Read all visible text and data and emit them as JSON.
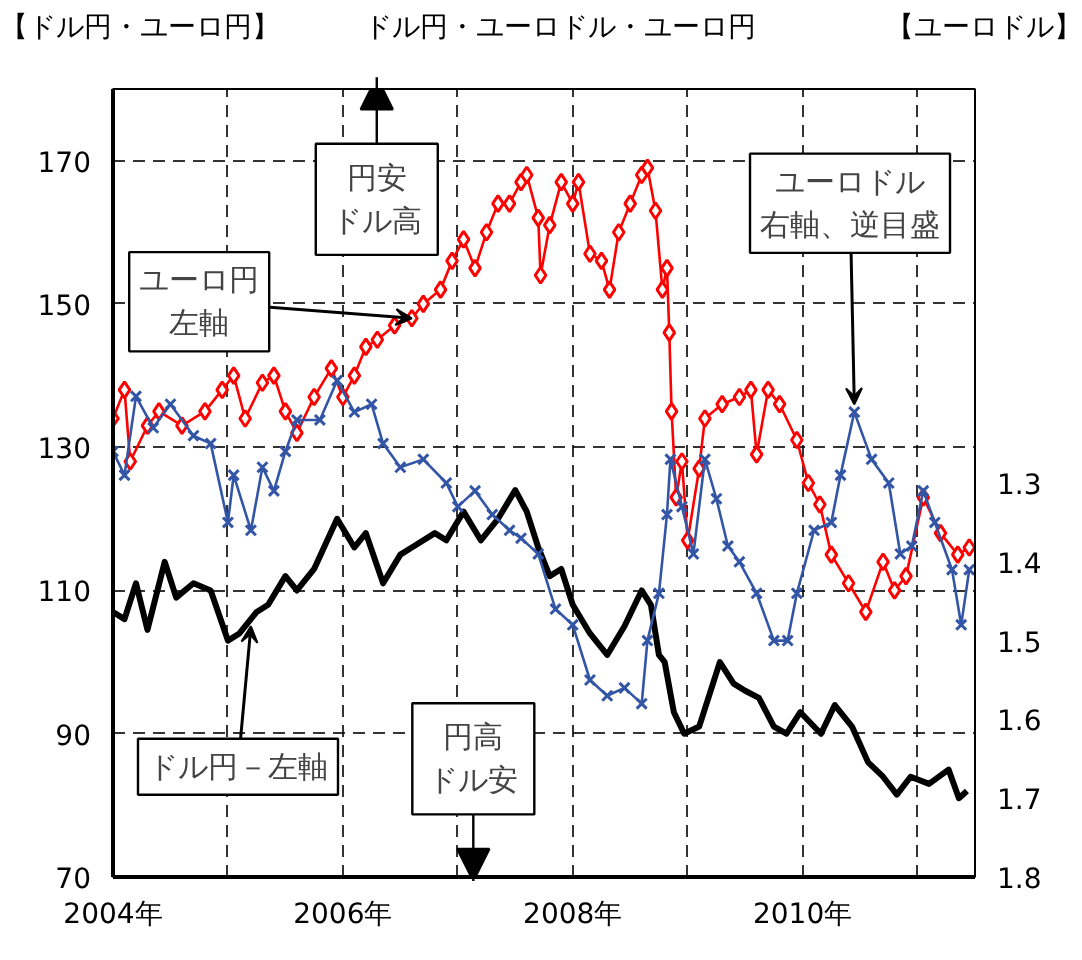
{
  "chart_data": {
    "type": "line",
    "title": "ドル円・ユーロドル・ユーロ円",
    "ylabel": "【ドル円・ユーロ円】",
    "y2label": "【ユーロドル】",
    "xlim": [
      2004,
      2011.5
    ],
    "xticks": [
      {
        "value": 2004,
        "label": "2004年"
      },
      {
        "value": 2005,
        "label": null
      },
      {
        "value": 2006,
        "label": "2006年"
      },
      {
        "value": 2007,
        "label": null
      },
      {
        "value": 2008,
        "label": "2008年"
      },
      {
        "value": 2009,
        "label": null
      },
      {
        "value": 2010,
        "label": "2010年"
      },
      {
        "value": 2011,
        "label": null
      }
    ],
    "ylim": [
      70,
      180
    ],
    "yticks": [
      70,
      90,
      110,
      130,
      150,
      170
    ],
    "y2lim": [
      1.8,
      0.8
    ],
    "y2ticks": [
      1.3,
      1.4,
      1.5,
      1.6,
      1.7,
      1.8
    ],
    "grid": true,
    "series": [
      {
        "color": "#000000",
        "marker": "none",
        "x": [
          2004.0,
          2004.1,
          2004.2,
          2004.3,
          2004.45,
          2004.55,
          2004.7,
          2004.85,
          2005.0,
          2005.1,
          2005.25,
          2005.35,
          2005.5,
          2005.6,
          2005.75,
          2005.95,
          2006.1,
          2006.2,
          2006.35,
          2006.5,
          2006.6,
          2006.8,
          2006.9,
          2007.05,
          2007.2,
          2007.35,
          2007.5,
          2007.6,
          2007.7,
          2007.8,
          2007.9,
          2008.0,
          2008.15,
          2008.3,
          2008.45,
          2008.6,
          2008.68,
          2008.75,
          2008.8,
          2008.88,
          2008.97,
          2009.1,
          2009.28,
          2009.4,
          2009.5,
          2009.62,
          2009.75,
          2009.86,
          2009.98,
          2010.16,
          2010.28,
          2010.43,
          2010.57,
          2010.7,
          2010.82,
          2010.94,
          2011.1,
          2011.27,
          2011.36,
          2011.43
        ],
        "values": [
          107,
          106,
          111,
          104.5,
          114,
          109,
          111,
          110,
          103,
          104,
          107,
          108,
          112,
          110,
          113,
          120,
          116,
          118,
          111,
          115,
          116,
          118,
          117,
          121,
          117,
          120,
          124,
          121,
          116,
          112,
          113,
          108,
          104,
          101,
          105,
          110,
          108,
          101,
          100,
          93,
          90,
          91,
          100,
          97,
          96,
          95,
          91,
          90,
          93,
          90,
          94,
          91,
          86,
          84,
          81.5,
          84,
          83,
          85,
          81,
          82
        ]
      },
      {
        "color": "#ff0000",
        "marker": "diamond",
        "x": [
          2004.0,
          2004.1,
          2004.15,
          2004.3,
          2004.4,
          2004.6,
          2004.8,
          2004.95,
          2005.05,
          2005.15,
          2005.3,
          2005.4,
          2005.5,
          2005.6,
          2005.75,
          2005.9,
          2006.0,
          2006.1,
          2006.2,
          2006.3,
          2006.45,
          2006.6,
          2006.7,
          2006.85,
          2006.95,
          2007.05,
          2007.15,
          2007.25,
          2007.35,
          2007.45,
          2007.55,
          2007.6,
          2007.7,
          2007.72,
          2007.8,
          2007.9,
          2008.0,
          2008.05,
          2008.15,
          2008.25,
          2008.32,
          2008.4,
          2008.5,
          2008.6,
          2008.65,
          2008.72,
          2008.78,
          2008.82,
          2008.84,
          2008.86,
          2008.9,
          2008.95,
          2009.0,
          2009.1,
          2009.15,
          2009.3,
          2009.45,
          2009.55,
          2009.6,
          2009.7,
          2009.8,
          2009.95,
          2010.05,
          2010.15,
          2010.25,
          2010.4,
          2010.55,
          2010.7,
          2010.8,
          2010.9,
          2011.05,
          2011.2,
          2011.35,
          2011.45
        ],
        "values": [
          134,
          138,
          128,
          133,
          135,
          133,
          135,
          138,
          140,
          134,
          139,
          140,
          135,
          132,
          137,
          141,
          137,
          140,
          144,
          145,
          147,
          148,
          150,
          152,
          156,
          159,
          155,
          160,
          164,
          164,
          167,
          168,
          162,
          154,
          161,
          167,
          164,
          167,
          157,
          156,
          152,
          160,
          164,
          168,
          169,
          163,
          152,
          155,
          146,
          135,
          123,
          128,
          117,
          127,
          134,
          136,
          137,
          138,
          129,
          138,
          136,
          131,
          125,
          122,
          115,
          111,
          107,
          114,
          110,
          112,
          123,
          118,
          115,
          116
        ]
      },
      {
        "color": "#3355a5",
        "marker": "cross",
        "axis": "y2",
        "x": [
          2004.0,
          2004.1,
          2004.2,
          2004.35,
          2004.5,
          2004.7,
          2004.85,
          2005.0,
          2005.05,
          2005.2,
          2005.3,
          2005.4,
          2005.5,
          2005.6,
          2005.8,
          2005.95,
          2006.1,
          2006.25,
          2006.35,
          2006.5,
          2006.7,
          2006.9,
          2007.0,
          2007.15,
          2007.3,
          2007.45,
          2007.55,
          2007.7,
          2007.85,
          2008.0,
          2008.15,
          2008.3,
          2008.45,
          2008.6,
          2008.65,
          2008.75,
          2008.82,
          2008.85,
          2008.95,
          2009.05,
          2009.15,
          2009.25,
          2009.35,
          2009.45,
          2009.6,
          2009.75,
          2009.87,
          2009.95,
          2010.1,
          2010.25,
          2010.33,
          2010.45,
          2010.6,
          2010.75,
          2010.85,
          2010.95,
          2011.05,
          2011.15,
          2011.3,
          2011.38,
          2011.45
        ],
        "values": [
          1.26,
          1.29,
          1.19,
          1.23,
          1.2,
          1.24,
          1.25,
          1.35,
          1.29,
          1.36,
          1.28,
          1.31,
          1.26,
          1.22,
          1.22,
          1.17,
          1.21,
          1.2,
          1.25,
          1.28,
          1.27,
          1.3,
          1.33,
          1.31,
          1.34,
          1.36,
          1.37,
          1.39,
          1.46,
          1.48,
          1.55,
          1.57,
          1.56,
          1.58,
          1.5,
          1.44,
          1.34,
          1.27,
          1.33,
          1.39,
          1.27,
          1.32,
          1.38,
          1.4,
          1.44,
          1.5,
          1.5,
          1.44,
          1.36,
          1.35,
          1.29,
          1.21,
          1.27,
          1.3,
          1.39,
          1.38,
          1.31,
          1.35,
          1.41,
          1.48,
          1.41
        ]
      }
    ],
    "annotations": [
      "円安ドル高",
      "円高ドル安",
      {
        "text": "ユーロ円左軸",
        "x": 2006.6,
        "y": 148
      },
      {
        "text": "ユーロドル右軸、逆目盛",
        "x": 2010.45,
        "y": 136
      },
      {
        "text": "ドル円－左軸",
        "x": 2005.2,
        "y": 105
      }
    ]
  }
}
